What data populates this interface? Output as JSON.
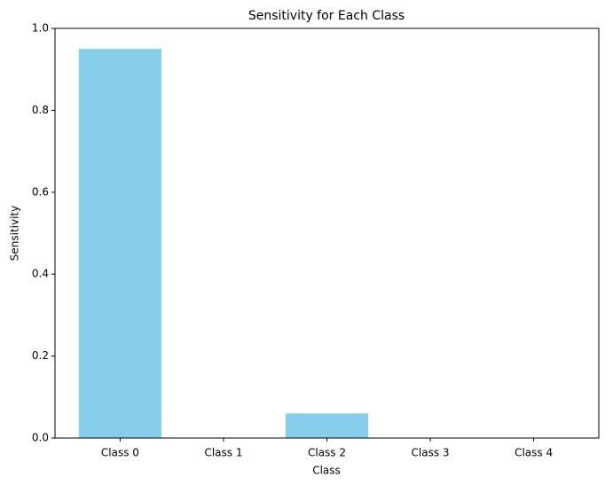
{
  "chart_data": {
    "type": "bar",
    "title": "Sensitivity for Each Class",
    "x_label": "Class",
    "y_label": "Sensitivity",
    "categories": [
      "Class 0",
      "Class 1",
      "Class 2",
      "Class 3",
      "Class 4"
    ],
    "values": [
      0.95,
      0,
      0.06,
      0,
      0
    ],
    "color": "#87ceeb",
    "ylim": [
      0,
      1
    ],
    "yticks": [
      {
        "value": 0,
        "label": "0.0"
      },
      0.2,
      0.4,
      0.6,
      0.8,
      {
        "value": 1,
        "label": "1.0"
      }
    ],
    "grid": false
  }
}
